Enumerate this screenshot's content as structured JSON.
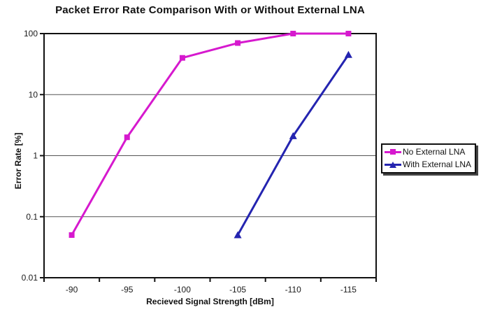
{
  "chart_data": {
    "type": "line",
    "title": "Packet Error Rate Comparison With or Without External LNA",
    "xlabel": "Recieved Signal Strength [dBm]",
    "ylabel": "Error Rate [%]",
    "x_categories": [
      "-90",
      "-95",
      "-100",
      "-105",
      "-110",
      "-115"
    ],
    "y_scale": "log",
    "y_ticks": [
      "100",
      "10",
      "1",
      "0.1",
      "0.01"
    ],
    "ylim": [
      0.01,
      100
    ],
    "grid": true,
    "gridline_color": "#555555",
    "frame_color": "#111111",
    "tick_label_color": "#1a1a1a",
    "legend_position": "right-middle-boxed-shadow",
    "series": [
      {
        "name": "No External LNA",
        "color": "#D619CE",
        "marker": "square",
        "values": [
          0.05,
          2,
          40,
          70,
          100,
          100
        ]
      },
      {
        "name": "With External LNA",
        "color": "#2424B0",
        "marker": "triangle",
        "values": [
          null,
          null,
          null,
          0.05,
          2.1,
          45
        ]
      }
    ]
  }
}
